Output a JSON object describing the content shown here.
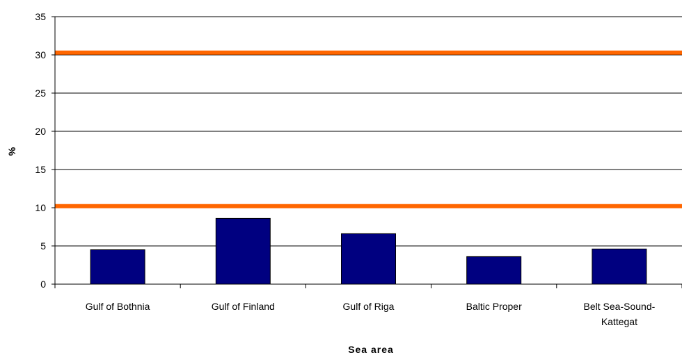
{
  "chart_data": {
    "type": "bar",
    "title": "",
    "xlabel": "Sea area",
    "ylabel": "%",
    "ylim": [
      0,
      35
    ],
    "yticks": [
      0,
      5,
      10,
      15,
      20,
      25,
      30,
      35
    ],
    "grid": true,
    "categories": [
      [
        "Gulf of Bothnia"
      ],
      [
        "Gulf of Finland"
      ],
      [
        "Gulf of Riga"
      ],
      [
        "Baltic Proper"
      ],
      [
        "Belt Sea-Sound-",
        "Kattegat"
      ]
    ],
    "values": [
      4.5,
      8.6,
      6.6,
      3.6,
      4.6
    ],
    "reference_lines": [
      10.2,
      30.3
    ],
    "colors": {
      "bar_fill": "#000080",
      "bar_stroke": "#000000",
      "reference_line": "#FF6600",
      "grid": "#000000"
    }
  }
}
